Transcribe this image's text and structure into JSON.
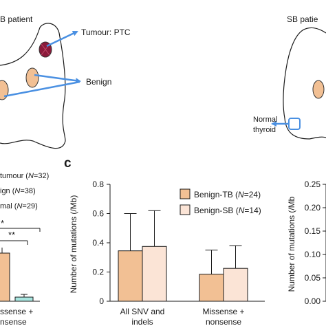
{
  "top_left": {
    "patient_label": "B patient",
    "tumour_label": "Tumour: PTC",
    "benign_label": "Benign"
  },
  "top_right": {
    "patient_label": "SB patie",
    "normal_label_1": "Normal",
    "normal_label_2": "thyroid"
  },
  "left_panel": {
    "legend": [
      {
        "prefix": "tumour (",
        "n": "N",
        "suffix": "=32)"
      },
      {
        "prefix": "ign (",
        "n": "N",
        "suffix": "=38)"
      },
      {
        "prefix": "mal (",
        "n": "N",
        "suffix": "=29)"
      }
    ],
    "sig_1": "*",
    "sig_2": "**",
    "xlabel_1": "ssense +",
    "xlabel_2": "nsense"
  },
  "right_panel": {
    "ylabel": "Number of mutations (/Mb",
    "ticks": [
      "0.25",
      "0.20",
      "0.15",
      "0.10",
      "0.05",
      "0.00"
    ]
  },
  "colors": {
    "benign_tb": "#f2c094",
    "benign_sb": "#fbe4d6",
    "tumour": "#8b1a3a",
    "arrow": "#4a90e2",
    "normal_bar": "#a8e6e0"
  },
  "chart_data": {
    "type": "bar",
    "panel_label": "c",
    "categories": [
      "All SNV and indels",
      "Missense + nonsense"
    ],
    "category_lines": [
      [
        "All  SNV and",
        "indels"
      ],
      [
        "Missense +",
        "nonsense"
      ]
    ],
    "series": [
      {
        "name": "Benign-TB",
        "n": "24",
        "values": [
          0.345,
          0.185
        ],
        "errors": [
          0.255,
          0.165
        ]
      },
      {
        "name": "Benign-SB",
        "n": "14",
        "values": [
          0.375,
          0.225
        ],
        "errors": [
          0.245,
          0.155
        ]
      }
    ],
    "yticks": [
      "0",
      "0.2",
      "0.4",
      "0.6",
      "0.8"
    ],
    "ylabel": "Number of mutations (/Mb)",
    "ylim": [
      0,
      0.8
    ],
    "legend_position": "top-right"
  }
}
